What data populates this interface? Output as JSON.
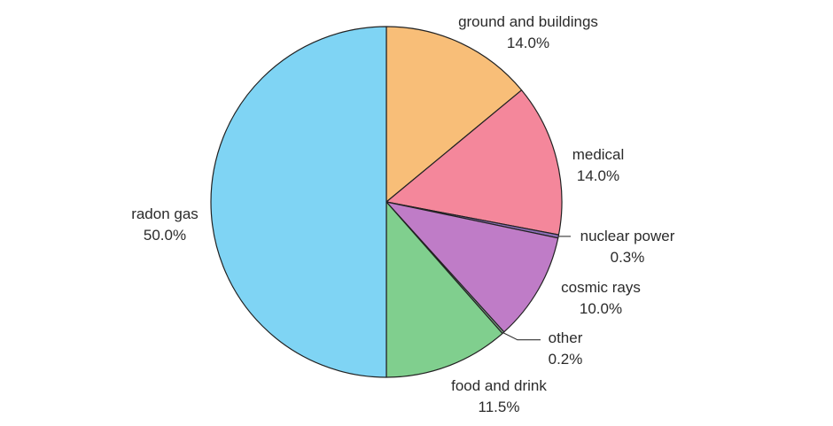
{
  "chart_data": {
    "type": "pie",
    "start": "12 o'clock, clockwise",
    "slices": [
      {
        "label": "ground and buildings",
        "value": 14.0,
        "pct_text": "14.0%",
        "color": "#F8BE78"
      },
      {
        "label": "medical",
        "value": 14.0,
        "pct_text": "14.0%",
        "color": "#F4879B"
      },
      {
        "label": "nuclear power",
        "value": 0.3,
        "pct_text": "0.3%",
        "color": "#8E6FB8"
      },
      {
        "label": "cosmic rays",
        "value": 10.0,
        "pct_text": "10.0%",
        "color": "#BF7CC7"
      },
      {
        "label": "other",
        "value": 0.2,
        "pct_text": "0.2%",
        "color": "#7FA08A"
      },
      {
        "label": "food and drink",
        "value": 11.5,
        "pct_text": "11.5%",
        "color": "#80CF8E"
      },
      {
        "label": "radon gas",
        "value": 50.0,
        "pct_text": "50.0%",
        "color": "#7FD4F4"
      }
    ]
  }
}
